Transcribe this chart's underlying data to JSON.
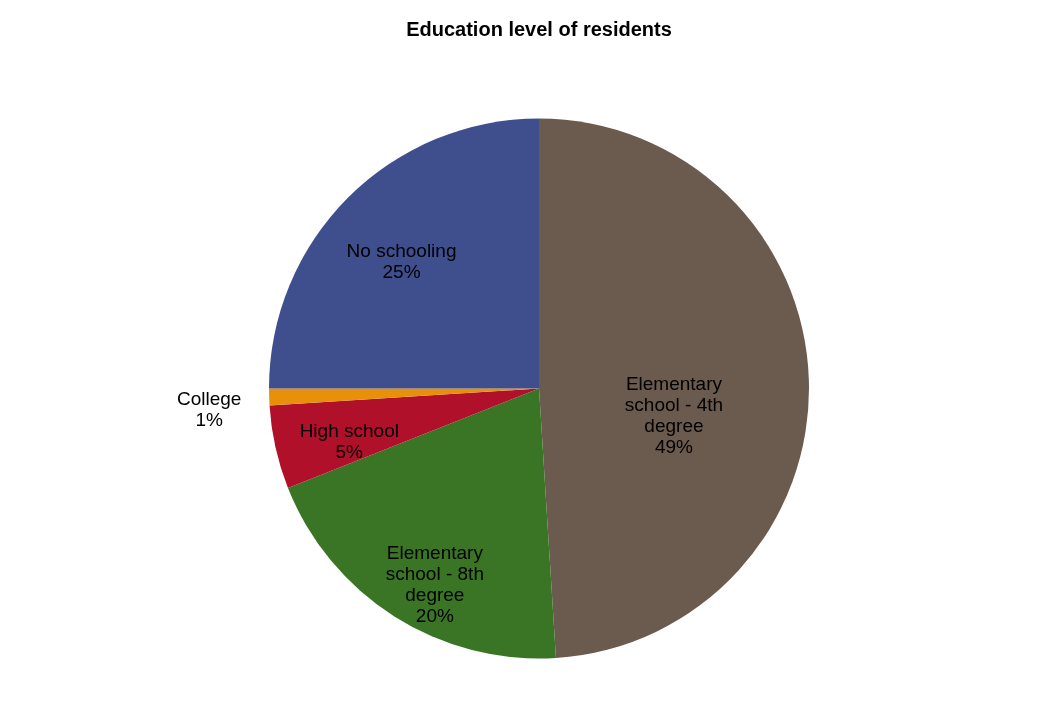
{
  "chart_data": {
    "type": "pie",
    "title": "Education level of residents",
    "categories": [
      "Elementary school - 4th degree",
      "Elementary school - 8th degree",
      "High school",
      "College",
      "No schooling"
    ],
    "values": [
      49,
      20,
      5,
      1,
      25
    ],
    "value_labels": [
      "49%",
      "20%",
      "5%",
      "1%",
      "25%"
    ],
    "colors": [
      "#6b5a4e",
      "#3a7526",
      "#b0102a",
      "#e8900a",
      "#3f4f8e"
    ],
    "legend": false
  }
}
